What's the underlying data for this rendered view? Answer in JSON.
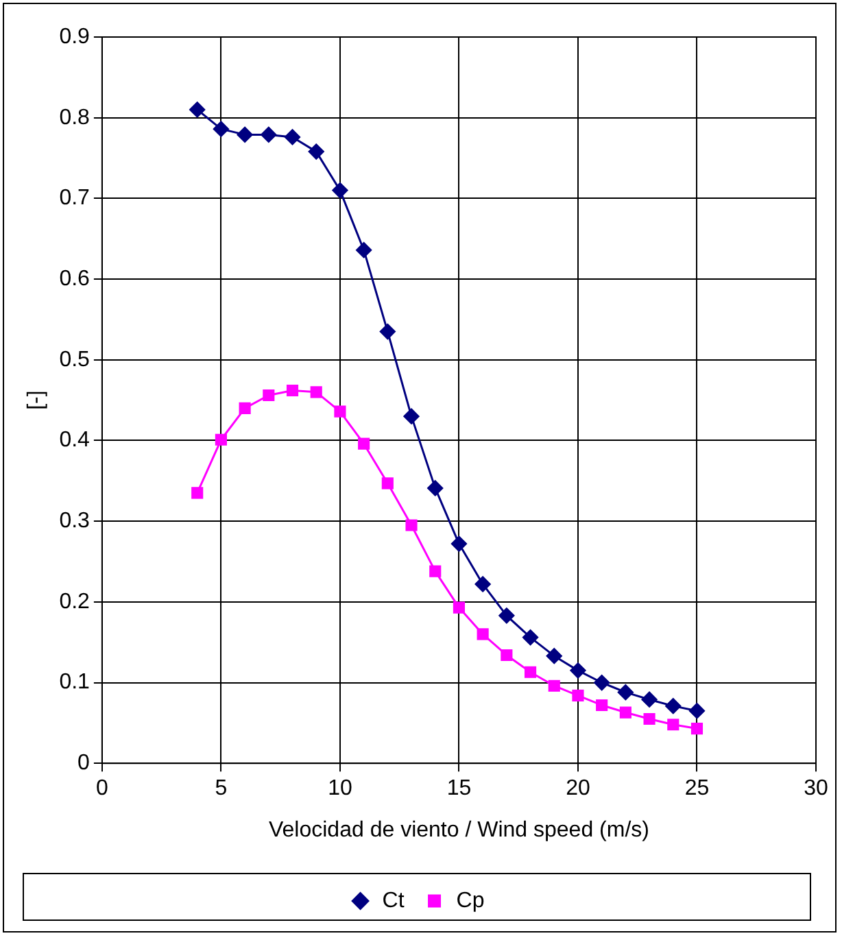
{
  "chart_data": {
    "type": "line",
    "xlabel": "Velocidad de viento / Wind speed (m/s)",
    "ylabel": "[-]",
    "x": [
      4,
      5,
      6,
      7,
      8,
      9,
      10,
      11,
      12,
      13,
      14,
      15,
      16,
      17,
      18,
      19,
      20,
      21,
      22,
      23,
      24,
      25
    ],
    "series": [
      {
        "name": "Ct",
        "color": "#000080",
        "marker": "diamond",
        "values": [
          0.81,
          0.786,
          0.779,
          0.779,
          0.776,
          0.758,
          0.71,
          0.636,
          0.535,
          0.43,
          0.341,
          0.272,
          0.222,
          0.183,
          0.156,
          0.133,
          0.115,
          0.1,
          0.088,
          0.079,
          0.071,
          0.065
        ]
      },
      {
        "name": "Cp",
        "color": "#ff00ff",
        "marker": "square",
        "values": [
          0.335,
          0.401,
          0.44,
          0.456,
          0.462,
          0.46,
          0.436,
          0.396,
          0.347,
          0.295,
          0.238,
          0.193,
          0.16,
          0.134,
          0.113,
          0.096,
          0.084,
          0.072,
          0.063,
          0.055,
          0.048,
          0.043
        ]
      }
    ],
    "xlim": [
      0,
      30
    ],
    "xticks": [
      0,
      5,
      10,
      15,
      20,
      25,
      30
    ],
    "ylim": [
      0,
      0.9
    ],
    "yticks": [
      0,
      0.1,
      0.2,
      0.3,
      0.4,
      0.5,
      0.6,
      0.7,
      0.8,
      0.9
    ],
    "grid": true,
    "legend": "bottom"
  }
}
